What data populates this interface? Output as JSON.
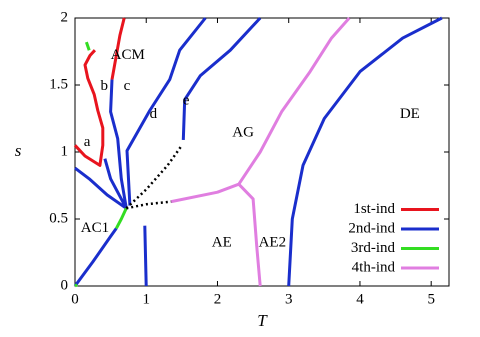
{
  "chart_data": {
    "type": "line",
    "xlabel": "T",
    "ylabel": "s",
    "xlim": [
      0,
      5.25
    ],
    "ylim": [
      0,
      2
    ],
    "xticks": [
      0,
      1,
      2,
      3,
      4,
      5
    ],
    "yticks": [
      0,
      0.5,
      1,
      1.5,
      2
    ],
    "legend": "lower right",
    "series": [
      {
        "name": "1st-ind",
        "color": "#e8141e",
        "x": [
          0,
          0.14,
          0.35,
          0.39,
          0.39,
          0.32,
          0.27,
          0.18,
          0.14,
          0.21,
          0.28,
          null,
          0.52,
          0.58,
          0.63,
          0.69
        ],
        "values": [
          1.05,
          0.97,
          0.9,
          1.05,
          1.18,
          1.31,
          1.43,
          1.55,
          1.65,
          1.72,
          1.76,
          null,
          1.54,
          1.72,
          1.87,
          2.0
        ]
      },
      {
        "name": "2nd-ind",
        "color": "#1a2ecc",
        "x": [
          0,
          0.25,
          0.5,
          0.58,
          null,
          0.72,
          0.45,
          0.2,
          0.0,
          null,
          0.72,
          0.5,
          0.42,
          null,
          0.72,
          0.65,
          0.6,
          0.5,
          0.52,
          null,
          0.77,
          0.73,
          1.05,
          1.33,
          1.47,
          1.83,
          null,
          1.52,
          1.54,
          1.76,
          2.18,
          2.6,
          null,
          0.98,
          1.0,
          null,
          3.0,
          3.05,
          3.2,
          3.5,
          4.0,
          4.6,
          5.15
        ],
        "values": [
          0,
          0.18,
          0.37,
          0.43,
          null,
          0.58,
          0.68,
          0.8,
          0.88,
          null,
          0.58,
          0.8,
          0.95,
          null,
          0.58,
          0.8,
          1.1,
          1.3,
          1.54,
          null,
          0.6,
          1.01,
          1.31,
          1.54,
          1.76,
          2.0,
          null,
          1.09,
          1.39,
          1.57,
          1.76,
          2.0,
          null,
          0.45,
          0,
          null,
          0,
          0.5,
          0.9,
          1.25,
          1.6,
          1.85,
          2.0
        ]
      },
      {
        "name": "3rd-ind",
        "color": "#33dd22",
        "x": [
          0.16,
          0.2,
          null,
          0.58,
          0.65,
          0.72,
          null,
          0,
          0.03
        ],
        "values": [
          1.82,
          1.76,
          null,
          0.43,
          0.5,
          0.58,
          null,
          0,
          0.01
        ]
      },
      {
        "name": "4th-ind",
        "color": "#e07ee0",
        "x": [
          1.35,
          2.0,
          2.3,
          null,
          2.3,
          2.6,
          2.9,
          3.3,
          3.6,
          3.85,
          null,
          2.3,
          2.5,
          2.55,
          2.6
        ],
        "values": [
          0.63,
          0.7,
          0.76,
          null,
          0.76,
          1.0,
          1.3,
          1.6,
          1.85,
          2.0,
          null,
          0.76,
          0.65,
          0.3,
          0
        ]
      },
      {
        "color": "#000000",
        "dashed": true,
        "x": [
          0.72,
          1.0,
          1.3,
          1.5,
          null,
          0.72,
          1.0,
          1.35
        ],
        "values": [
          0.58,
          0.72,
          0.9,
          1.05,
          null,
          0.58,
          0.61,
          0.63
        ]
      }
    ],
    "annotations": [
      {
        "text": "ACM",
        "x": 0.74,
        "y": 1.72
      },
      {
        "text": "a",
        "x": 0.17,
        "y": 1.07
      },
      {
        "text": "b",
        "x": 0.41,
        "y": 1.49
      },
      {
        "text": "c",
        "x": 0.73,
        "y": 1.49
      },
      {
        "text": "d",
        "x": 1.1,
        "y": 1.28
      },
      {
        "text": "e",
        "x": 1.56,
        "y": 1.38
      },
      {
        "text": "AG",
        "x": 2.36,
        "y": 1.14
      },
      {
        "text": "DE",
        "x": 4.7,
        "y": 1.28
      },
      {
        "text": "AC1",
        "x": 0.28,
        "y": 0.43
      },
      {
        "text": "AE",
        "x": 2.06,
        "y": 0.32
      },
      {
        "text": "AE2",
        "x": 2.77,
        "y": 0.32
      }
    ]
  }
}
